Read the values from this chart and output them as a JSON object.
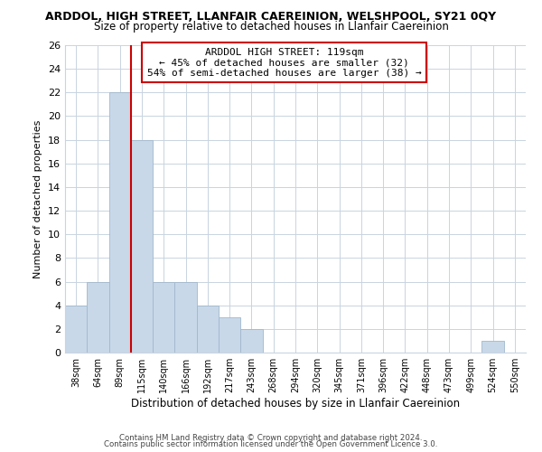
{
  "title": "ARDDOL, HIGH STREET, LLANFAIR CAEREINION, WELSHPOOL, SY21 0QY",
  "subtitle": "Size of property relative to detached houses in Llanfair Caereinion",
  "xlabel": "Distribution of detached houses by size in Llanfair Caereinion",
  "ylabel": "Number of detached properties",
  "bar_labels": [
    "38sqm",
    "64sqm",
    "89sqm",
    "115sqm",
    "140sqm",
    "166sqm",
    "192sqm",
    "217sqm",
    "243sqm",
    "268sqm",
    "294sqm",
    "320sqm",
    "345sqm",
    "371sqm",
    "396sqm",
    "422sqm",
    "448sqm",
    "473sqm",
    "499sqm",
    "524sqm",
    "550sqm"
  ],
  "bar_heights": [
    4,
    6,
    22,
    18,
    6,
    6,
    4,
    3,
    2,
    0,
    0,
    0,
    0,
    0,
    0,
    0,
    0,
    0,
    0,
    1,
    0
  ],
  "bar_color": "#c8d8e8",
  "bar_edge_color": "#a0b8cc",
  "reference_line_color": "#cc0000",
  "annotation_title": "ARDDOL HIGH STREET: 119sqm",
  "annotation_line1": "← 45% of detached houses are smaller (32)",
  "annotation_line2": "54% of semi-detached houses are larger (38) →",
  "annotation_box_color": "#ffffff",
  "annotation_box_edge": "#cc0000",
  "ylim": [
    0,
    26
  ],
  "yticks": [
    0,
    2,
    4,
    6,
    8,
    10,
    12,
    14,
    16,
    18,
    20,
    22,
    24,
    26
  ],
  "footer1": "Contains HM Land Registry data © Crown copyright and database right 2024.",
  "footer2": "Contains public sector information licensed under the Open Government Licence 3.0.",
  "bg_color": "#ffffff",
  "grid_color": "#c8d4e0"
}
